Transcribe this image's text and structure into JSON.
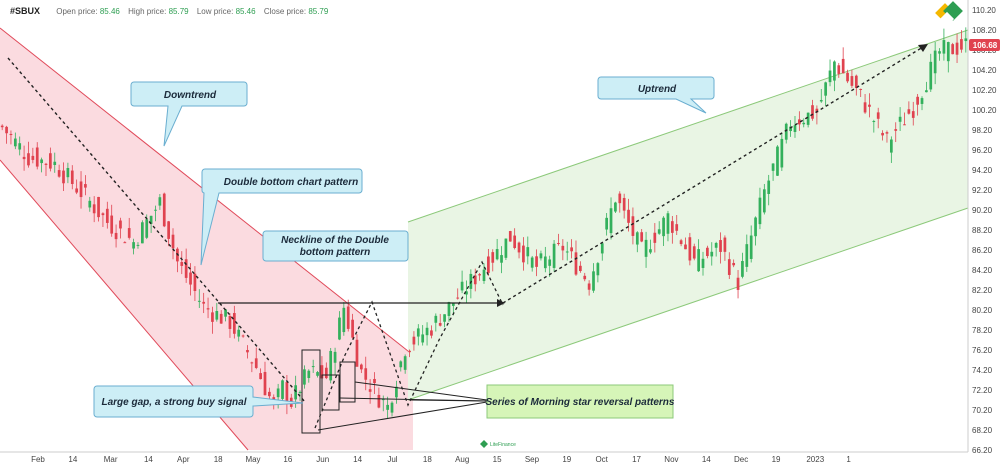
{
  "header": {
    "symbol": "#SBUX",
    "open_label": "Open price:",
    "open_value": "85.46",
    "high_label": "High price:",
    "high_value": "85.79",
    "low_label": "Low price:",
    "low_value": "85.46",
    "close_label": "Close price:",
    "close_value": "85.79"
  },
  "last_price": "106.68",
  "colors": {
    "up": "#33b05c",
    "down": "#e0424f",
    "downtrend_fill": "#fbdbe0",
    "downtrend_line": "#e04a5a",
    "uptrend_fill": "#e9f5e4",
    "uptrend_line": "#8cc97a",
    "callout_blue": "#cdeef6",
    "callout_green": "#d6f5b8",
    "price_tag": "#e0424f"
  },
  "callouts": {
    "downtrend": "Downtrend",
    "double_bottom": "Double bottom chart pattern",
    "neckline_1": "Neckline of the Double",
    "neckline_2": "bottom pattern",
    "uptrend": "Uptrend",
    "large_gap": "Large gap, a strong buy signal",
    "morning_star": "Series of Morning star reversal patterns"
  },
  "logo": {
    "text": "LiteFinance"
  },
  "chart_data": {
    "type": "candlestick",
    "title": "",
    "y_ticks": [
      "110.20",
      "108.20",
      "106.20",
      "104.20",
      "102.20",
      "100.20",
      "98.20",
      "96.20",
      "94.20",
      "92.20",
      "90.20",
      "88.20",
      "86.20",
      "84.20",
      "82.20",
      "80.20",
      "78.20",
      "76.20",
      "74.20",
      "72.20",
      "70.20",
      "68.20",
      "66.20"
    ],
    "ylim": [
      66.2,
      110.2
    ],
    "x_ticks": [
      "Feb",
      "14",
      "Mar",
      "14",
      "Apr",
      "18",
      "May",
      "16",
      "Jun",
      "14",
      "Jul",
      "18",
      "Aug",
      "15",
      "Sep",
      "19",
      "Oct",
      "17",
      "Nov",
      "14",
      "Dec",
      "19",
      "2023",
      "1"
    ],
    "x_tick_pos": [
      0.0,
      0.048,
      0.1,
      0.152,
      0.2,
      0.248,
      0.296,
      0.344,
      0.392,
      0.44,
      0.488,
      0.536,
      0.584,
      0.632,
      0.68,
      0.728,
      0.776,
      0.824,
      0.872,
      0.92,
      0.968,
      1.016,
      1.07,
      1.116
    ],
    "anchors": [
      [
        0,
        98.5
      ],
      [
        6,
        95.5
      ],
      [
        12,
        94.8
      ],
      [
        18,
        92.0
      ],
      [
        24,
        89.0
      ],
      [
        30,
        87.0
      ],
      [
        36,
        91.0
      ],
      [
        40,
        85.0
      ],
      [
        46,
        80.5
      ],
      [
        52,
        79.0
      ],
      [
        58,
        74.5
      ],
      [
        62,
        70.5
      ],
      [
        64,
        72.5
      ],
      [
        66,
        71.0
      ],
      [
        70,
        74.0
      ],
      [
        74,
        73.5
      ],
      [
        78,
        80.5
      ],
      [
        82,
        74.0
      ],
      [
        86,
        71.5
      ],
      [
        88,
        70.5
      ],
      [
        92,
        76.5
      ],
      [
        98,
        78.5
      ],
      [
        104,
        81.5
      ],
      [
        110,
        84.5
      ],
      [
        116,
        87.5
      ],
      [
        122,
        84.5
      ],
      [
        128,
        86.5
      ],
      [
        134,
        83.0
      ],
      [
        140,
        91.5
      ],
      [
        146,
        86.0
      ],
      [
        152,
        89.5
      ],
      [
        158,
        85.0
      ],
      [
        164,
        86.5
      ],
      [
        168,
        83.0
      ],
      [
        174,
        92.0
      ],
      [
        180,
        99.0
      ],
      [
        186,
        100.0
      ],
      [
        190,
        105.0
      ],
      [
        196,
        101.5
      ],
      [
        202,
        97.0
      ],
      [
        208,
        100.5
      ],
      [
        214,
        106.0
      ],
      [
        220,
        106.68
      ]
    ],
    "last_price": 106.68
  }
}
